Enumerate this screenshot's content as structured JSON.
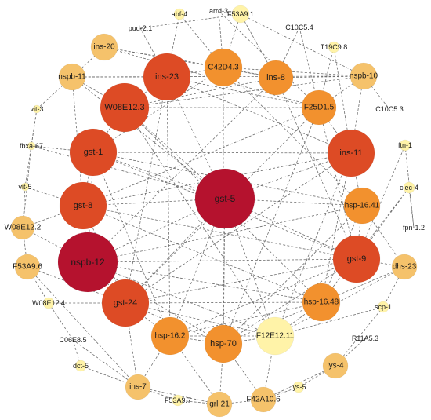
{
  "diagram": {
    "type": "network",
    "node_color_scale": {
      "low": "#fff3a8",
      "mid_low": "#f5c26b",
      "mid": "#f2912e",
      "mid_high": "#dd4b25",
      "high": "#b5122e"
    },
    "nodes": [
      {
        "id": "abf-4",
        "label": "abf-4",
        "degree": 1
      },
      {
        "id": "arrd-3",
        "label": "arrd-3",
        "degree": 1
      },
      {
        "id": "F53A9.1",
        "label": "F53A9.1",
        "degree": 1
      },
      {
        "id": "pud-2.1",
        "label": "pud-2.1",
        "degree": 1
      },
      {
        "id": "C10C5.4",
        "label": "C10C5.4",
        "degree": 1
      },
      {
        "id": "ins-20",
        "label": "ins-20",
        "degree": 2
      },
      {
        "id": "T19C9.8",
        "label": "T19C9.8",
        "degree": 1
      },
      {
        "id": "nspb-11",
        "label": "nspb-11",
        "degree": 2
      },
      {
        "id": "ins-23",
        "label": "ins-23",
        "degree": 4
      },
      {
        "id": "C42D4.3",
        "label": "C42D4.3",
        "degree": 3
      },
      {
        "id": "ins-8",
        "label": "ins-8",
        "degree": 3
      },
      {
        "id": "nspb-10",
        "label": "nspb-10",
        "degree": 2
      },
      {
        "id": "vit-3",
        "label": "vit-3",
        "degree": 1
      },
      {
        "id": "W08E12.3",
        "label": "W08E12.3",
        "degree": 4
      },
      {
        "id": "F25D1.5",
        "label": "F25D1.5",
        "degree": 3
      },
      {
        "id": "C10C5.3",
        "label": "C10C5.3",
        "degree": 1
      },
      {
        "id": "fbxa-67",
        "label": "fbxa-67",
        "degree": 1
      },
      {
        "id": "gst-1",
        "label": "gst-1",
        "degree": 4
      },
      {
        "id": "ins-11",
        "label": "ins-11",
        "degree": 4
      },
      {
        "id": "ftn-1",
        "label": "ftn-1",
        "degree": 1
      },
      {
        "id": "vit-5",
        "label": "vit-5",
        "degree": 1
      },
      {
        "id": "gst-5",
        "label": "gst-5",
        "degree": 5
      },
      {
        "id": "gst-8",
        "label": "gst-8",
        "degree": 4
      },
      {
        "id": "clec-4",
        "label": "clec-4",
        "degree": 1
      },
      {
        "id": "hsp-16.41",
        "label": "hsp-16.41",
        "degree": 3
      },
      {
        "id": "W08E12.2",
        "label": "W08E12.2",
        "degree": 2
      },
      {
        "id": "fpn-1.2",
        "label": "fpn-1.2",
        "degree": 1
      },
      {
        "id": "F53A9.6",
        "label": "F53A9.6",
        "degree": 2
      },
      {
        "id": "nspb-12",
        "label": "nspb-12",
        "degree": 5
      },
      {
        "id": "gst-9",
        "label": "gst-9",
        "degree": 4
      },
      {
        "id": "dhs-23",
        "label": "dhs-23",
        "degree": 2
      },
      {
        "id": "W08E12.4",
        "label": "W08E12.4",
        "degree": 1
      },
      {
        "id": "gst-24",
        "label": "gst-24",
        "degree": 4
      },
      {
        "id": "hsp-16.48",
        "label": "hsp-16.48",
        "degree": 3
      },
      {
        "id": "scp-1",
        "label": "scp-1",
        "degree": 1
      },
      {
        "id": "C06E8.5",
        "label": "C06E8.5",
        "degree": 1
      },
      {
        "id": "R11A5.3",
        "label": "R11A5.3",
        "degree": 1
      },
      {
        "id": "hsp-16.2",
        "label": "hsp-16.2",
        "degree": 3
      },
      {
        "id": "F12E12.11",
        "label": "F12E12.11",
        "degree": 1
      },
      {
        "id": "hsp-70",
        "label": "hsp-70",
        "degree": 3
      },
      {
        "id": "dct-5",
        "label": "dct-5",
        "degree": 1
      },
      {
        "id": "lys-4",
        "label": "lys-4",
        "degree": 2
      },
      {
        "id": "ins-7",
        "label": "ins-7",
        "degree": 2
      },
      {
        "id": "lys-5",
        "label": "lys-5",
        "degree": 1
      },
      {
        "id": "F53A9.7",
        "label": "F53A9.7",
        "degree": 1
      },
      {
        "id": "grl-21",
        "label": "grl-21",
        "degree": 2
      },
      {
        "id": "F42A10.6",
        "label": "F42A10.6",
        "degree": 2
      }
    ],
    "edges": [
      [
        "abf-4",
        "C42D4.3"
      ],
      [
        "abf-4",
        "ins-23"
      ],
      [
        "arrd-3",
        "F25D1.5"
      ],
      [
        "arrd-3",
        "C42D4.3"
      ],
      [
        "F53A9.1",
        "C42D4.3"
      ],
      [
        "F53A9.1",
        "ins-8"
      ],
      [
        "F53A9.1",
        "nspb-10"
      ],
      [
        "pud-2.1",
        "ins-23"
      ],
      [
        "pud-2.1",
        "F53A9.1"
      ],
      [
        "C10C5.4",
        "F25D1.5"
      ],
      [
        "C10C5.4",
        "ins-8"
      ],
      [
        "T19C9.8",
        "ins-11"
      ],
      [
        "T19C9.8",
        "F25D1.5"
      ],
      [
        "ins-20",
        "C42D4.3"
      ],
      [
        "ins-20",
        "F25D1.5"
      ],
      [
        "ins-20",
        "ins-8"
      ],
      [
        "ins-20",
        "nspb-11"
      ],
      [
        "nspb-11",
        "ins-23"
      ],
      [
        "nspb-11",
        "nspb-10"
      ],
      [
        "nspb-11",
        "gst-5"
      ],
      [
        "nspb-11",
        "vit-3"
      ],
      [
        "nspb-11",
        "gst-8"
      ],
      [
        "ins-23",
        "C42D4.3"
      ],
      [
        "ins-23",
        "F25D1.5"
      ],
      [
        "ins-23",
        "ins-11"
      ],
      [
        "ins-23",
        "gst-24"
      ],
      [
        "ins-23",
        "hsp-16.2"
      ],
      [
        "ins-23",
        "gst-5"
      ],
      [
        "C42D4.3",
        "ins-8"
      ],
      [
        "C42D4.3",
        "nspb-10"
      ],
      [
        "C42D4.3",
        "gst-1"
      ],
      [
        "C42D4.3",
        "hsp-16.41"
      ],
      [
        "C42D4.3",
        "hsp-70"
      ],
      [
        "ins-8",
        "nspb-10"
      ],
      [
        "ins-8",
        "W08E12.3"
      ],
      [
        "ins-8",
        "gst-9"
      ],
      [
        "ins-8",
        "nspb-12"
      ],
      [
        "nspb-10",
        "F25D1.5"
      ],
      [
        "nspb-10",
        "C10C5.3"
      ],
      [
        "nspb-10",
        "ins-11"
      ],
      [
        "nspb-10",
        "W08E12.3"
      ],
      [
        "W08E12.3",
        "F25D1.5"
      ],
      [
        "W08E12.3",
        "gst-1"
      ],
      [
        "W08E12.3",
        "gst-5"
      ],
      [
        "W08E12.3",
        "hsp-16.48"
      ],
      [
        "W08E12.3",
        "F12E12.11"
      ],
      [
        "F25D1.5",
        "ins-11"
      ],
      [
        "F25D1.5",
        "gst-8"
      ],
      [
        "F25D1.5",
        "gst-24"
      ],
      [
        "F25D1.5",
        "hsp-70"
      ],
      [
        "F25D1.5",
        "gst-9"
      ],
      [
        "vit-3",
        "fbxa-67"
      ],
      [
        "vit-3",
        "vit-5"
      ],
      [
        "fbxa-67",
        "gst-5"
      ],
      [
        "fbxa-67",
        "W08E12.2"
      ],
      [
        "fbxa-67",
        "gst-1"
      ],
      [
        "gst-1",
        "gst-8"
      ],
      [
        "gst-1",
        "gst-5"
      ],
      [
        "gst-1",
        "hsp-16.41"
      ],
      [
        "gst-1",
        "gst-9"
      ],
      [
        "gst-1",
        "hsp-16.2"
      ],
      [
        "gst-1",
        "ins-11"
      ],
      [
        "gst-1",
        "nspb-12"
      ],
      [
        "ins-11",
        "gst-8"
      ],
      [
        "ins-11",
        "gst-5"
      ],
      [
        "ins-11",
        "hsp-16.41"
      ],
      [
        "ins-11",
        "gst-24"
      ],
      [
        "ins-11",
        "hsp-16.48"
      ],
      [
        "ins-11",
        "F12E12.11"
      ],
      [
        "ftn-1",
        "fpn-1.2"
      ],
      [
        "ftn-1",
        "gst-9"
      ],
      [
        "vit-5",
        "W08E12.2"
      ],
      [
        "vit-5",
        "gst-8"
      ],
      [
        "gst-5",
        "gst-8"
      ],
      [
        "gst-5",
        "nspb-12"
      ],
      [
        "gst-5",
        "gst-9"
      ],
      [
        "gst-5",
        "hsp-16.41"
      ],
      [
        "gst-5",
        "gst-24"
      ],
      [
        "gst-5",
        "hsp-70"
      ],
      [
        "gst-5",
        "hsp-16.2"
      ],
      [
        "gst-5",
        "F12E12.11"
      ],
      [
        "gst-8",
        "gst-9"
      ],
      [
        "gst-8",
        "nspb-12"
      ],
      [
        "gst-8",
        "hsp-16.48"
      ],
      [
        "gst-8",
        "gst-24"
      ],
      [
        "gst-8",
        "W08E12.2"
      ],
      [
        "clec-4",
        "fpn-1.2"
      ],
      [
        "clec-4",
        "gst-9"
      ],
      [
        "clec-4",
        "hsp-16.48"
      ],
      [
        "hsp-16.41",
        "gst-9"
      ],
      [
        "hsp-16.41",
        "hsp-16.48"
      ],
      [
        "hsp-16.41",
        "nspb-12"
      ],
      [
        "hsp-16.41",
        "hsp-70"
      ],
      [
        "W08E12.2",
        "F53A9.6"
      ],
      [
        "W08E12.2",
        "nspb-12"
      ],
      [
        "F53A9.6",
        "W08E12.4"
      ],
      [
        "F53A9.6",
        "ins-7"
      ],
      [
        "F53A9.6",
        "gst-24"
      ],
      [
        "nspb-12",
        "gst-9"
      ],
      [
        "nspb-12",
        "gst-24"
      ],
      [
        "nspb-12",
        "hsp-16.48"
      ],
      [
        "nspb-12",
        "hsp-70"
      ],
      [
        "nspb-12",
        "F12E12.11"
      ],
      [
        "gst-9",
        "dhs-23"
      ],
      [
        "gst-9",
        "gst-24"
      ],
      [
        "gst-9",
        "hsp-16.2"
      ],
      [
        "gst-9",
        "hsp-70"
      ],
      [
        "dhs-23",
        "hsp-16.48"
      ],
      [
        "dhs-23",
        "scp-1"
      ],
      [
        "dhs-23",
        "F12E12.11"
      ],
      [
        "W08E12.4",
        "gst-24"
      ],
      [
        "W08E12.4",
        "C06E8.5"
      ],
      [
        "gst-24",
        "hsp-16.48"
      ],
      [
        "gst-24",
        "hsp-16.2"
      ],
      [
        "gst-24",
        "hsp-70"
      ],
      [
        "gst-24",
        "F12E12.11"
      ],
      [
        "gst-24",
        "ins-7"
      ],
      [
        "hsp-16.48",
        "hsp-16.2"
      ],
      [
        "hsp-16.48",
        "hsp-70"
      ],
      [
        "hsp-16.48",
        "F12E12.11"
      ],
      [
        "scp-1",
        "F12E12.11"
      ],
      [
        "scp-1",
        "lys-4"
      ],
      [
        "R11A5.3",
        "lys-4"
      ],
      [
        "C06E8.5",
        "dct-5"
      ],
      [
        "C06E8.5",
        "ins-7"
      ],
      [
        "hsp-16.2",
        "hsp-70"
      ],
      [
        "hsp-16.2",
        "F12E12.11"
      ],
      [
        "hsp-16.2",
        "ins-7"
      ],
      [
        "hsp-16.2",
        "grl-21"
      ],
      [
        "F12E12.11",
        "hsp-70"
      ],
      [
        "F12E12.11",
        "F42A10.6"
      ],
      [
        "hsp-70",
        "grl-21"
      ],
      [
        "hsp-70",
        "F42A10.6"
      ],
      [
        "dct-5",
        "ins-7"
      ],
      [
        "lys-4",
        "lys-5"
      ],
      [
        "lys-4",
        "F42A10.6"
      ],
      [
        "ins-7",
        "F53A9.7"
      ],
      [
        "ins-7",
        "grl-21"
      ],
      [
        "lys-5",
        "F42A10.6"
      ],
      [
        "F53A9.7",
        "grl-21"
      ],
      [
        "grl-21",
        "F42A10.6"
      ],
      [
        "hsp-16.41",
        "dhs-23"
      ],
      [
        "W08E12.3",
        "ins-23"
      ],
      [
        "nspb-11",
        "W08E12.3"
      ]
    ]
  }
}
